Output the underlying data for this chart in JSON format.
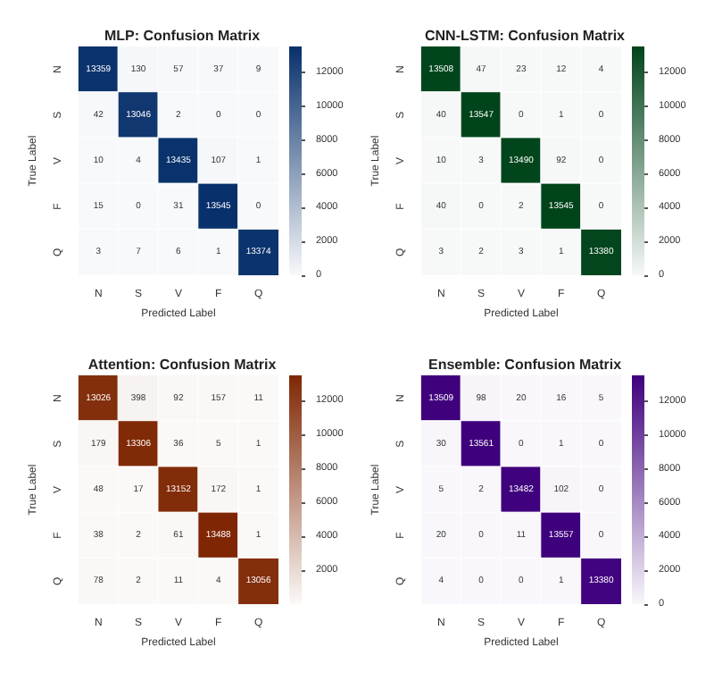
{
  "chart_data": [
    {
      "type": "heatmap",
      "title": "MLP: Confusion Matrix",
      "xlabel": "Predicted Label",
      "ylabel": "True Label",
      "categories": [
        "N",
        "S",
        "V",
        "F",
        "Q"
      ],
      "y_categories": [
        "N",
        "S",
        "V",
        "F",
        "Q"
      ],
      "color": "#08306b",
      "data_labels": true,
      "clim": [
        0,
        13545
      ],
      "cticks": [
        0,
        2000,
        4000,
        6000,
        8000,
        10000,
        12000
      ],
      "cells": [
        [
          13359,
          130,
          57,
          37,
          9
        ],
        [
          42,
          13046,
          2,
          0,
          0
        ],
        [
          10,
          4,
          13435,
          107,
          1
        ],
        [
          15,
          0,
          31,
          13545,
          0
        ],
        [
          3,
          7,
          6,
          1,
          13374
        ]
      ]
    },
    {
      "type": "heatmap",
      "title": "CNN-LSTM: Confusion Matrix",
      "xlabel": "Predicted Label",
      "ylabel": "True Label",
      "categories": [
        "N",
        "S",
        "V",
        "F",
        "Q"
      ],
      "y_categories": [
        "N",
        "S",
        "V",
        "F",
        "Q"
      ],
      "color": "#00441b",
      "data_labels": true,
      "clim": [
        0,
        13547
      ],
      "cticks": [
        0,
        2000,
        4000,
        6000,
        8000,
        10000,
        12000
      ],
      "cells": [
        [
          13508,
          47,
          23,
          12,
          4
        ],
        [
          40,
          13547,
          0,
          1,
          0
        ],
        [
          10,
          3,
          13490,
          92,
          0
        ],
        [
          40,
          0,
          2,
          13545,
          0
        ],
        [
          3,
          2,
          3,
          1,
          13380
        ]
      ]
    },
    {
      "type": "heatmap",
      "title": "Attention: Confusion Matrix",
      "xlabel": "Predicted Label",
      "ylabel": "True Label",
      "categories": [
        "N",
        "S",
        "V",
        "F",
        "Q"
      ],
      "y_categories": [
        "N",
        "S",
        "V",
        "F",
        "Q"
      ],
      "color": "#7f2704",
      "data_labels": true,
      "clim": [
        0,
        13488
      ],
      "cticks": [
        2000,
        4000,
        6000,
        8000,
        10000,
        12000
      ],
      "cells": [
        [
          13026,
          398,
          92,
          157,
          11
        ],
        [
          179,
          13306,
          36,
          5,
          1
        ],
        [
          48,
          17,
          13152,
          172,
          1
        ],
        [
          38,
          2,
          61,
          13488,
          1
        ],
        [
          78,
          2,
          11,
          4,
          13056
        ]
      ]
    },
    {
      "type": "heatmap",
      "title": "Ensemble: Confusion Matrix",
      "xlabel": "Predicted Label",
      "ylabel": "True Label",
      "categories": [
        "N",
        "S",
        "V",
        "F",
        "Q"
      ],
      "y_categories": [
        "N",
        "S",
        "V",
        "F",
        "Q"
      ],
      "color": "#3f007d",
      "data_labels": true,
      "clim": [
        0,
        13561
      ],
      "cticks": [
        0,
        2000,
        4000,
        6000,
        8000,
        10000,
        12000
      ],
      "cells": [
        [
          13509,
          98,
          20,
          16,
          5
        ],
        [
          30,
          13561,
          0,
          1,
          0
        ],
        [
          5,
          2,
          13482,
          102,
          0
        ],
        [
          20,
          0,
          11,
          13557,
          0
        ],
        [
          4,
          0,
          0,
          1,
          13380
        ]
      ]
    }
  ]
}
